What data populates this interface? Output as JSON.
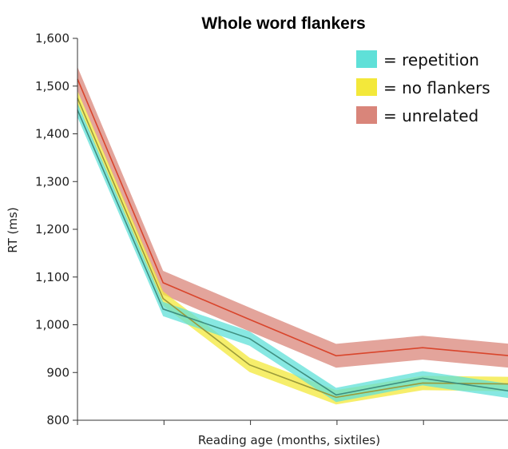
{
  "chart_data": {
    "type": "line",
    "title": "Whole word flankers",
    "xlabel": "Reading age (months, sixtiles)",
    "ylabel": "RT (ms)",
    "x": [
      1,
      2,
      3,
      4,
      5,
      6
    ],
    "xlim": [
      1,
      6
    ],
    "ylim": [
      800,
      1600
    ],
    "yticks": [
      800,
      900,
      1000,
      1100,
      1200,
      1300,
      1400,
      1500,
      1600
    ],
    "ytick_labels": [
      "800",
      "900",
      "1,000",
      "1,100",
      "1,200",
      "1,300",
      "1,400",
      "1,500",
      "1,600"
    ],
    "grid": false,
    "legend_position": "top-right",
    "series": [
      {
        "name": "= unrelated",
        "color": "#d9452c",
        "band_color": "#d9857a",
        "points": [
          [
            1,
            1515
          ],
          [
            1.99,
            1088
          ],
          [
            2.99,
            1011
          ],
          [
            3.99,
            935
          ],
          [
            4.99,
            952
          ],
          [
            6,
            935
          ]
        ],
        "ci": 25
      },
      {
        "name": "= no flankers",
        "color": "#9a9a3a",
        "band_color": "#f3e83a",
        "points": [
          [
            1,
            1475
          ],
          [
            1.99,
            1055
          ],
          [
            2.99,
            916
          ],
          [
            3.99,
            848
          ],
          [
            4.99,
            878
          ],
          [
            6,
            876
          ]
        ],
        "ci": 15
      },
      {
        "name": "= repetition",
        "color": "#3f8f80",
        "band_color": "#5fe0d8",
        "points": [
          [
            1,
            1450
          ],
          [
            1.99,
            1033
          ],
          [
            2.99,
            971
          ],
          [
            3.99,
            853
          ],
          [
            4.99,
            888
          ],
          [
            6,
            861
          ]
        ],
        "ci": 15
      }
    ],
    "legend_order": [
      "= repetition",
      "= no flankers",
      "= unrelated"
    ]
  }
}
